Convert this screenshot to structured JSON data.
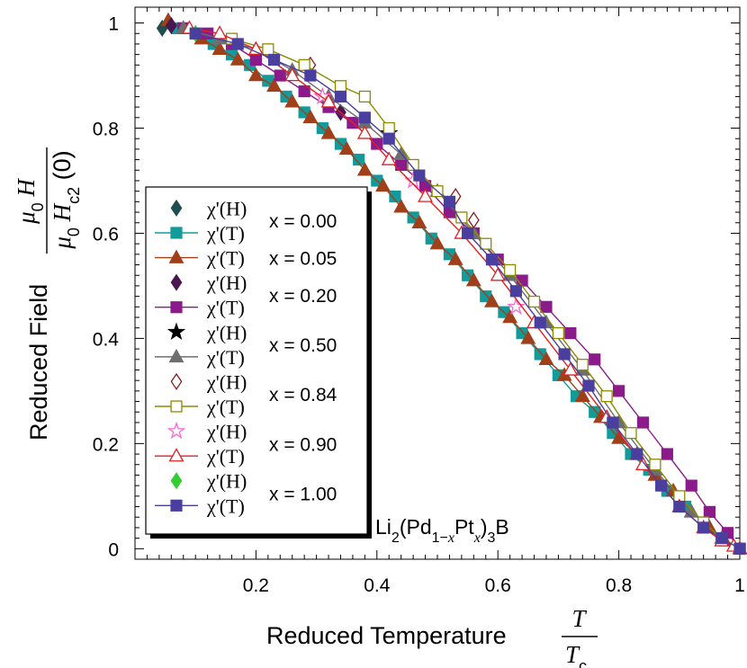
{
  "chart_data": {
    "type": "scatter",
    "title": "",
    "annotation": "Li2(Pd1-xPtx)3B",
    "xlabel": "Reduced Temperature T / Tc",
    "ylabel": "Reduced Field μ0H / μ0Hc2(0)",
    "xlim": [
      0.0,
      1.0
    ],
    "ylim": [
      -0.02,
      1.03
    ],
    "xticks": [
      "0.2",
      "0.4",
      "0.6",
      "0.8",
      "1"
    ],
    "yticks": [
      "0",
      "0.2",
      "0.4",
      "0.6",
      "0.8",
      "1"
    ],
    "grid": false,
    "legend_position": "left",
    "legend_groups": [
      "x = 0.00",
      "x = 0.05",
      "x = 0.20",
      "x = 0.50",
      "x = 0.84",
      "x = 0.90",
      "x = 1.00"
    ],
    "legend_labels": {
      "chi_H": "χ'(H)",
      "chi_T": "χ'(T)"
    },
    "series": [
      {
        "name": "χ'(H) x = 0.00",
        "group": "x = 0.00",
        "marker": "diamond",
        "filled": true,
        "color": "#1f4e4e",
        "line": false,
        "x": [
          0.045,
          0.06
        ],
        "y": [
          0.99,
          0.995
        ]
      },
      {
        "name": "χ'(T) x = 0.00",
        "group": "x = 0.00",
        "marker": "square",
        "filled": true,
        "color": "#139a9a",
        "line": true,
        "x": [
          0.07,
          0.1,
          0.13,
          0.16,
          0.19,
          0.22,
          0.25,
          0.28,
          0.31,
          0.34,
          0.37,
          0.4,
          0.43,
          0.46,
          0.49,
          0.52,
          0.55,
          0.58,
          0.61,
          0.64,
          0.67,
          0.7,
          0.73,
          0.76,
          0.79,
          0.82,
          0.85,
          0.88,
          0.91,
          0.94,
          0.97,
          1.0
        ],
        "y": [
          0.99,
          0.98,
          0.96,
          0.94,
          0.92,
          0.89,
          0.86,
          0.83,
          0.8,
          0.77,
          0.74,
          0.7,
          0.67,
          0.63,
          0.59,
          0.56,
          0.52,
          0.48,
          0.45,
          0.41,
          0.37,
          0.33,
          0.29,
          0.26,
          0.22,
          0.18,
          0.15,
          0.11,
          0.08,
          0.05,
          0.02,
          0.0
        ]
      },
      {
        "name": "χ'(T) x = 0.05",
        "group": "x = 0.05",
        "marker": "triangle",
        "filled": true,
        "color": "#a0401a",
        "line": true,
        "x": [
          0.055,
          0.08,
          0.11,
          0.14,
          0.17,
          0.2,
          0.23,
          0.26,
          0.29,
          0.32,
          0.35,
          0.38,
          0.41,
          0.44,
          0.47,
          0.5,
          0.53,
          0.56,
          0.59,
          0.62,
          0.65,
          0.68,
          0.71,
          0.74,
          0.77,
          0.8,
          0.83,
          0.86,
          0.89,
          0.92,
          0.95,
          0.975,
          1.0
        ],
        "y": [
          1.005,
          0.99,
          0.97,
          0.95,
          0.93,
          0.9,
          0.88,
          0.85,
          0.82,
          0.79,
          0.76,
          0.72,
          0.69,
          0.65,
          0.62,
          0.58,
          0.55,
          0.51,
          0.47,
          0.44,
          0.4,
          0.36,
          0.33,
          0.29,
          0.25,
          0.21,
          0.18,
          0.14,
          0.11,
          0.07,
          0.04,
          0.015,
          0.0
        ]
      },
      {
        "name": "χ'(H) x = 0.20",
        "group": "x = 0.20",
        "marker": "diamond",
        "filled": true,
        "color": "#4a1650",
        "line": false,
        "x": [
          0.06,
          0.34
        ],
        "y": [
          0.995,
          0.83
        ]
      },
      {
        "name": "χ'(T) x = 0.20",
        "group": "x = 0.20",
        "marker": "square",
        "filled": true,
        "color": "#8b1a8b",
        "line": true,
        "x": [
          0.08,
          0.12,
          0.16,
          0.2,
          0.24,
          0.28,
          0.32,
          0.36,
          0.4,
          0.44,
          0.48,
          0.52,
          0.56,
          0.6,
          0.64,
          0.68,
          0.72,
          0.76,
          0.8,
          0.84,
          0.88,
          0.92,
          0.95,
          0.98,
          1.0
        ],
        "y": [
          0.99,
          0.98,
          0.96,
          0.93,
          0.9,
          0.87,
          0.84,
          0.81,
          0.77,
          0.73,
          0.69,
          0.64,
          0.6,
          0.55,
          0.51,
          0.46,
          0.41,
          0.36,
          0.3,
          0.24,
          0.18,
          0.12,
          0.07,
          0.03,
          0.0
        ]
      },
      {
        "name": "χ'(H) x = 0.50",
        "group": "x = 0.50",
        "marker": "star",
        "filled": true,
        "color": "#000000",
        "line": false,
        "x": [
          0.42
        ],
        "y": [
          0.79
        ]
      },
      {
        "name": "χ'(T) x = 0.50",
        "group": "x = 0.50",
        "marker": "triangle",
        "filled": true,
        "color": "#6e6e6e",
        "line": true,
        "x": [
          0.08,
          0.14,
          0.2,
          0.26,
          0.32,
          0.38,
          0.44,
          0.5,
          0.56,
          0.62,
          0.68,
          0.74,
          0.8,
          0.86,
          0.92,
          0.97,
          1.0
        ],
        "y": [
          0.99,
          0.97,
          0.95,
          0.91,
          0.86,
          0.81,
          0.75,
          0.68,
          0.6,
          0.52,
          0.43,
          0.34,
          0.24,
          0.15,
          0.07,
          0.02,
          0.0
        ]
      },
      {
        "name": "χ'(H) x = 0.84",
        "group": "x = 0.84",
        "marker": "diamond",
        "filled": false,
        "color": "#8b1a1a",
        "line": false,
        "x": [
          0.29,
          0.53,
          0.56
        ],
        "y": [
          0.92,
          0.67,
          0.625
        ]
      },
      {
        "name": "χ'(T) x = 0.84",
        "group": "x = 0.84",
        "marker": "square",
        "filled": false,
        "color": "#8b8b00",
        "line": true,
        "x": [
          0.16,
          0.22,
          0.28,
          0.34,
          0.38,
          0.42,
          0.46,
          0.5,
          0.54,
          0.58,
          0.62,
          0.66,
          0.7,
          0.74,
          0.78,
          0.82,
          0.86,
          0.9,
          0.94,
          0.97,
          1.0
        ],
        "y": [
          0.97,
          0.95,
          0.92,
          0.88,
          0.86,
          0.8,
          0.73,
          0.68,
          0.63,
          0.58,
          0.53,
          0.47,
          0.41,
          0.35,
          0.29,
          0.22,
          0.16,
          0.1,
          0.05,
          0.02,
          0.0
        ]
      },
      {
        "name": "χ'(H) x = 0.90",
        "group": "x = 0.90",
        "marker": "star",
        "filled": false,
        "color": "#ff66cc",
        "line": false,
        "x": [
          0.31,
          0.46,
          0.63
        ],
        "y": [
          0.86,
          0.7,
          0.46
        ]
      },
      {
        "name": "χ'(T) x = 0.90",
        "group": "x = 0.90",
        "marker": "triangle",
        "filled": false,
        "color": "#e02020",
        "line": true,
        "x": [
          0.09,
          0.14,
          0.2,
          0.26,
          0.32,
          0.38,
          0.42,
          0.48,
          0.54,
          0.6,
          0.66,
          0.72,
          0.78,
          0.84,
          0.9,
          0.94,
          0.97,
          0.99,
          1.0
        ],
        "y": [
          0.99,
          0.98,
          0.95,
          0.9,
          0.85,
          0.79,
          0.74,
          0.67,
          0.6,
          0.52,
          0.43,
          0.34,
          0.25,
          0.16,
          0.08,
          0.04,
          0.015,
          0.005,
          0.0
        ]
      },
      {
        "name": "χ'(H) x = 1.00",
        "group": "x = 1.00",
        "marker": "diamond",
        "filled": true,
        "color": "#33cc33",
        "line": false,
        "x": [
          0.1
        ],
        "y": [
          0.98
        ]
      },
      {
        "name": "χ'(T) x = 1.00",
        "group": "x = 1.00",
        "marker": "square",
        "filled": true,
        "color": "#4a3f9f",
        "line": true,
        "x": [
          0.1,
          0.17,
          0.23,
          0.29,
          0.34,
          0.38,
          0.42,
          0.47,
          0.52,
          0.55,
          0.59,
          0.63,
          0.67,
          0.71,
          0.75,
          0.79,
          0.83,
          0.87,
          0.9,
          0.94,
          0.97,
          1.0
        ],
        "y": [
          0.98,
          0.96,
          0.93,
          0.9,
          0.86,
          0.82,
          0.78,
          0.71,
          0.66,
          0.6,
          0.55,
          0.49,
          0.43,
          0.37,
          0.31,
          0.24,
          0.18,
          0.12,
          0.08,
          0.04,
          0.02,
          0.0
        ]
      }
    ]
  }
}
